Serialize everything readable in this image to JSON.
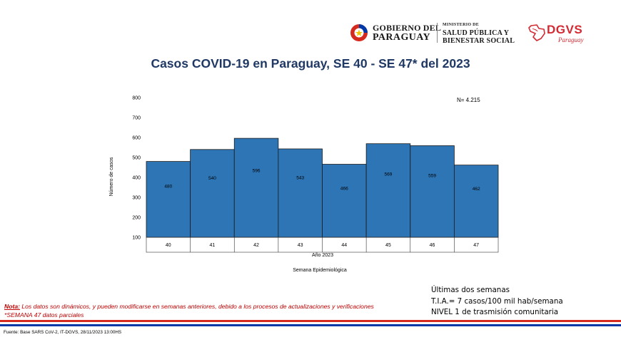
{
  "header": {
    "gobierno_line1": "GOBIERNO DEL",
    "gobierno_line2": "PARAGUAY",
    "ministerio_line1": "MINISTERIO DE",
    "ministerio_line2": "SALUD PÚBLICA Y",
    "ministerio_line3": "BIENESTAR SOCIAL",
    "dgvs_name": "DGVS",
    "dgvs_sub": "Paraguay"
  },
  "chart_data": {
    "type": "bar",
    "title": "Casos COVID-19 en Paraguay, SE 40 - SE 47* del  2023",
    "categories": [
      "40",
      "41",
      "42",
      "43",
      "44",
      "45",
      "46",
      "47"
    ],
    "values": [
      480,
      540,
      596,
      543,
      466,
      569,
      559,
      462
    ],
    "data_labels": [
      "480",
      "540",
      "596",
      "543",
      "466",
      "569",
      "559",
      "462"
    ],
    "ylim": [
      100,
      800
    ],
    "yticks": [
      100,
      200,
      300,
      400,
      500,
      600,
      700,
      800
    ],
    "ytick_labels": [
      "100",
      "200",
      "300",
      "400",
      "500",
      "600",
      "700",
      "800"
    ],
    "ylabel": "Número de casos",
    "xlabel_year": "Año 2023",
    "xlabel": "Semana Epidemiológica",
    "annotation": "N= 4.215",
    "bar_color": "#2e75b6",
    "grid": false
  },
  "notes": {
    "label": "Nota:",
    "line1": " Los datos son dinámicos, y pueden modificarse en semanas anteriores, debido a los procesos de actualizaciones y verificaciones",
    "line2": "*SEMANA 47 datos parciales"
  },
  "summary": {
    "line1": "Últimas dos semanas",
    "line2": "T.I.A.= 7 casos/100 mil hab/semana",
    "line3": "NIVEL 1 de trasmisión comunitaria"
  },
  "footer": {
    "source": "Fuente: Base SARS CoV-2, IT-DGVS, 28/11/2023 13:00HS"
  },
  "colors": {
    "title": "#1f3864",
    "note": "#c00000",
    "flag_red": "#d52b1e",
    "flag_blue": "#0038a8",
    "dgvs_red": "#d42a33"
  }
}
